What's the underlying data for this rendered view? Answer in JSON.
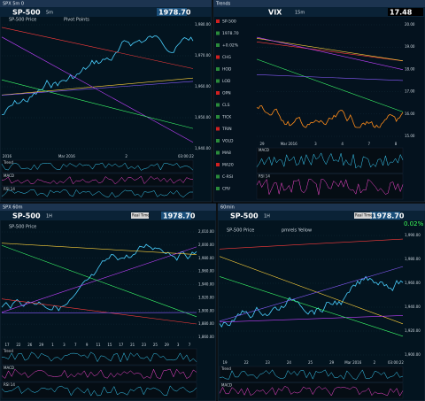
{
  "panels": [
    {
      "header": "SPX 5m 0",
      "symbol": "SP-500",
      "interval": "5m",
      "price": "1978.70",
      "study": "SP-500 Price",
      "legend": "Pivot Points",
      "x_labels": [
        "2016",
        "Mar 2016",
        "2",
        "03:00:22"
      ],
      "y_labels": [
        "1,980.00",
        "1,970.00",
        "1,960.00",
        "1,950.00",
        "1,940.00"
      ],
      "lower": [
        "Trend",
        "MACD",
        "RSI 14"
      ]
    },
    {
      "header": "Trends",
      "symbol": "VIX",
      "interval": "15m",
      "price": "17.48",
      "watchlist": [
        "SP-500",
        "1978.70",
        "+0.02%",
        "CHG",
        "HOD",
        "LOD",
        "OPN",
        "CLS",
        "TICK",
        "TRIN",
        "VOLD",
        "MA8",
        "MA20",
        "C-RSI",
        "CRV"
      ],
      "x_labels": [
        "29",
        "Mar 2016",
        "3",
        "4",
        "7",
        "8"
      ],
      "y_labels": [
        "20.00",
        "19.00",
        "18.00",
        "17.00",
        "16.00",
        "15.00"
      ],
      "lower": [
        "MACD",
        "RSI 14"
      ]
    },
    {
      "header": "SPX 60m",
      "symbol": "SP-500",
      "interval": "1H",
      "price": "1978.70",
      "button": "Real Time",
      "study": "SP-500 Price",
      "x_labels": [
        "17",
        "22",
        "26",
        "29",
        "1",
        "3",
        "7",
        "9",
        "11",
        "15",
        "17",
        "21",
        "23",
        "25",
        "29",
        "3",
        "7"
      ],
      "y_labels": [
        "2,010.00",
        "2,000.00",
        "1,980.00",
        "1,960.00",
        "1,940.00",
        "1,920.00",
        "1,900.00",
        "1,880.00",
        "1,860.00"
      ],
      "lower": [
        "Trend",
        "MACD",
        "RSI 14"
      ]
    },
    {
      "header": "60min",
      "symbol": "SP-500",
      "interval": "1H",
      "price": "1978.70",
      "change": "0.02%",
      "button": "Real Time",
      "study": "SP-500 Price",
      "legend": "pmrels Yellow",
      "x_labels": [
        "19",
        "22",
        "23",
        "24",
        "25",
        "29",
        "Mar 2016",
        "2",
        "03:00:22"
      ],
      "y_labels": [
        "1,990.00",
        "1,980.00",
        "1,960.00",
        "1,940.00",
        "1,920.00",
        "1,900.00"
      ],
      "lower": [
        "Trend",
        "MACD"
      ]
    }
  ]
}
